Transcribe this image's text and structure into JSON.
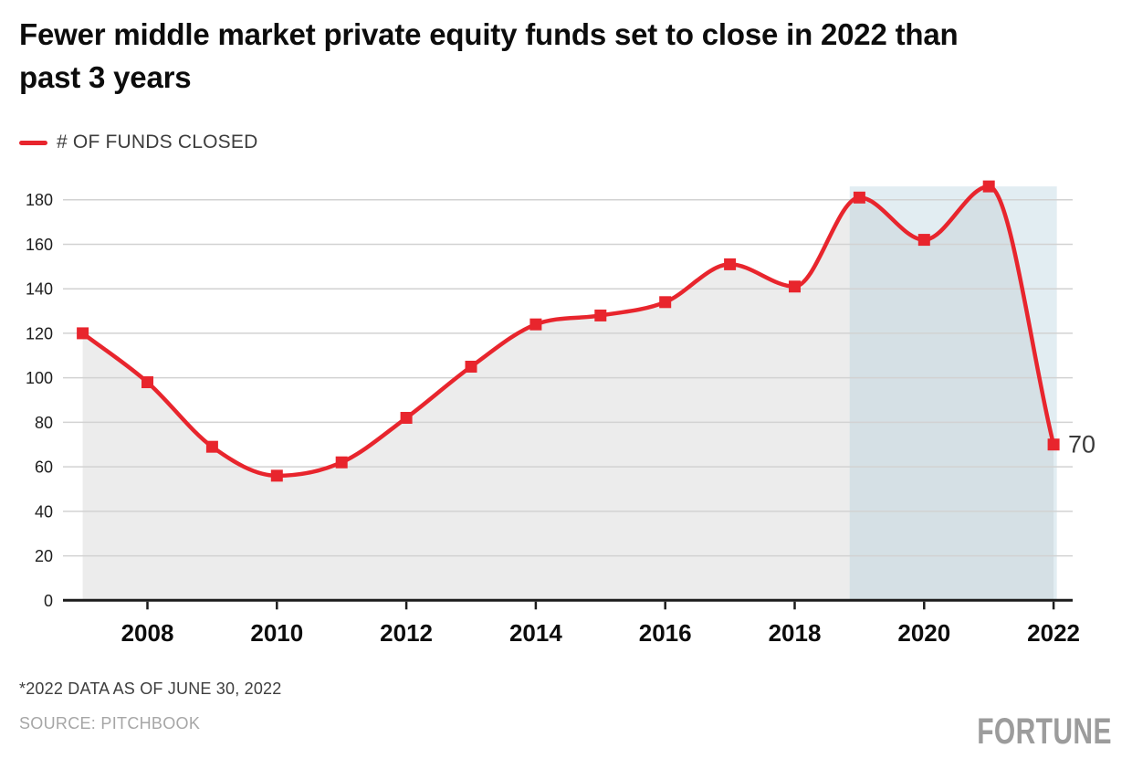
{
  "header": {
    "title": "Fewer middle market private equity funds set to close in 2022 than past 3 years"
  },
  "legend": {
    "label": "# OF FUNDS CLOSED",
    "swatch_color": "#e8252d"
  },
  "chart_data": {
    "type": "line",
    "title": "Fewer middle market private equity funds set to close in 2022 than past 3 years",
    "x": [
      2007,
      2008,
      2009,
      2010,
      2011,
      2012,
      2013,
      2014,
      2015,
      2016,
      2017,
      2018,
      2019,
      2020,
      2021,
      2022
    ],
    "series": [
      {
        "name": "# OF FUNDS CLOSED",
        "values": [
          120,
          98,
          69,
          56,
          62,
          82,
          105,
          124,
          128,
          134,
          151,
          141,
          181,
          162,
          186,
          70
        ]
      }
    ],
    "xlabel": "",
    "ylabel": "",
    "xticks": [
      2008,
      2010,
      2012,
      2014,
      2016,
      2018,
      2020,
      2022
    ],
    "yticks": [
      0,
      20,
      40,
      60,
      80,
      100,
      120,
      140,
      160,
      180
    ],
    "ylim": [
      0,
      192
    ],
    "xlim": [
      2006.7,
      2022.3
    ],
    "grid": true,
    "legend_position": "top-left",
    "marker": "square",
    "curve": "monotone",
    "annotation": {
      "text": "70",
      "x": 2022,
      "y": 70
    },
    "highlight_region": {
      "x_start": 2018.85,
      "x_end": 2022.05,
      "y_top": 186
    },
    "colors": {
      "line": "#e8252d",
      "marker": "#e8252d",
      "area_fill": "#ececec",
      "highlight_fill": "rgba(172,204,218,0.35)",
      "grid_line": "#d2d2d2",
      "axis_line": "#1c1c1c",
      "x_tick_label": "#0d0d0d",
      "y_tick_label": "#1d1d1d",
      "annotation_text": "#3a3a3a"
    }
  },
  "footer": {
    "note": "*2022 DATA AS OF JUNE 30, 2022",
    "source": "SOURCE: PITCHBOOK",
    "brand": "FORTUNE"
  }
}
